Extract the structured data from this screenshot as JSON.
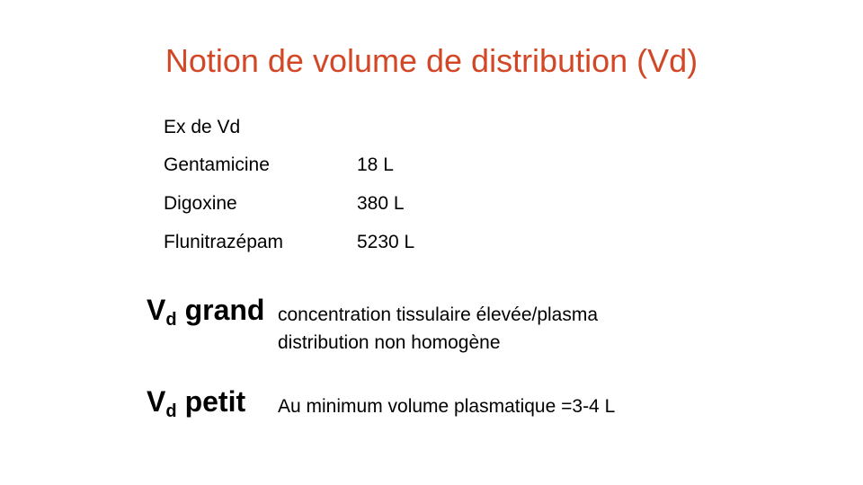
{
  "slide": {
    "title": "Notion de volume de distribution (Vd)",
    "title_color": "#D24726",
    "examples": {
      "heading": "Ex de Vd",
      "rows": [
        {
          "drug": "Gentamicine",
          "value": "18 L"
        },
        {
          "drug": "Digoxine",
          "value": "380 L"
        },
        {
          "drug": "Flunitrazépam",
          "value": "5230 L"
        }
      ]
    },
    "vd_grand": {
      "symbol": "V",
      "subscript": "d",
      "word": "grand",
      "lines": [
        "concentration tissulaire élevée/plasma",
        "distribution non homogène"
      ]
    },
    "vd_petit": {
      "symbol": "V",
      "subscript": "d",
      "word": "petit",
      "lines": [
        "Au minimum volume plasmatique =3-4 L"
      ]
    }
  }
}
